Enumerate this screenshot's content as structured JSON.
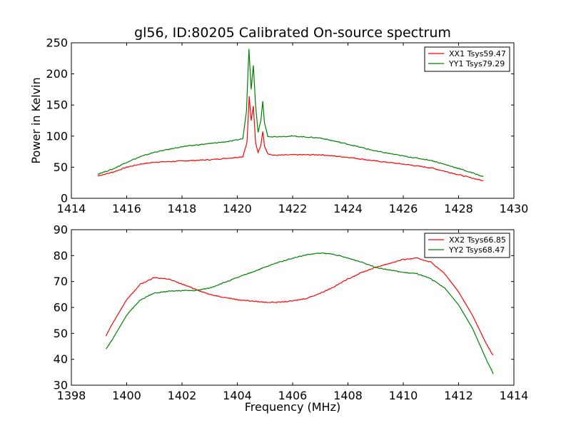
{
  "figure": {
    "title": "gl56, ID:80205 Calibrated On-source spectrum",
    "xlabel": "Frequency (MHz)"
  },
  "chart_data": [
    {
      "type": "line",
      "title": "gl56, ID:80205 Calibrated On-source spectrum",
      "xlabel": "",
      "ylabel": "Power in Kelvin",
      "xlim": [
        1414,
        1430
      ],
      "ylim": [
        0,
        250
      ],
      "xticks": [
        1414,
        1416,
        1418,
        1420,
        1422,
        1424,
        1426,
        1428,
        1430
      ],
      "yticks": [
        0,
        50,
        100,
        150,
        200,
        250
      ],
      "grid": false,
      "legend_position": "top-right",
      "series": [
        {
          "name": "XX1 Tsys59.47",
          "color": "#ff0000",
          "points": [
            [
              1414.95,
              36
            ],
            [
              1415.5,
              42
            ],
            [
              1416.0,
              50
            ],
            [
              1416.5,
              55
            ],
            [
              1417.0,
              58
            ],
            [
              1418.0,
              60
            ],
            [
              1419.0,
              62
            ],
            [
              1419.8,
              65
            ],
            [
              1420.2,
              67
            ],
            [
              1420.35,
              90
            ],
            [
              1420.43,
              164
            ],
            [
              1420.5,
              125
            ],
            [
              1420.58,
              148
            ],
            [
              1420.66,
              90
            ],
            [
              1420.75,
              73
            ],
            [
              1420.85,
              85
            ],
            [
              1420.92,
              108
            ],
            [
              1420.98,
              85
            ],
            [
              1421.1,
              72
            ],
            [
              1421.3,
              69
            ],
            [
              1422.0,
              70
            ],
            [
              1423.0,
              70
            ],
            [
              1424.0,
              66
            ],
            [
              1425.0,
              60
            ],
            [
              1426.0,
              55
            ],
            [
              1427.0,
              49
            ],
            [
              1428.0,
              38
            ],
            [
              1428.9,
              28
            ]
          ]
        },
        {
          "name": "YY1 Tsys79.29",
          "color": "#008000",
          "points": [
            [
              1414.95,
              39
            ],
            [
              1415.5,
              47
            ],
            [
              1416.0,
              58
            ],
            [
              1416.5,
              67
            ],
            [
              1417.0,
              74
            ],
            [
              1418.0,
              83
            ],
            [
              1419.0,
              88
            ],
            [
              1419.8,
              92
            ],
            [
              1420.2,
              96
            ],
            [
              1420.33,
              140
            ],
            [
              1420.42,
              240
            ],
            [
              1420.5,
              175
            ],
            [
              1420.58,
              214
            ],
            [
              1420.66,
              150
            ],
            [
              1420.75,
              106
            ],
            [
              1420.85,
              125
            ],
            [
              1420.92,
              156
            ],
            [
              1420.98,
              122
            ],
            [
              1421.1,
              100
            ],
            [
              1421.3,
              99
            ],
            [
              1422.0,
              100
            ],
            [
              1423.0,
              97
            ],
            [
              1424.0,
              87
            ],
            [
              1425.0,
              76
            ],
            [
              1426.0,
              68
            ],
            [
              1427.0,
              61
            ],
            [
              1428.0,
              48
            ],
            [
              1428.9,
              35
            ]
          ]
        }
      ]
    },
    {
      "type": "line",
      "title": "",
      "xlabel": "Frequency (MHz)",
      "ylabel": "",
      "xlim": [
        1398,
        1414
      ],
      "ylim": [
        30,
        90
      ],
      "xticks": [
        1398,
        1400,
        1402,
        1404,
        1406,
        1408,
        1410,
        1412,
        1414
      ],
      "yticks": [
        30,
        40,
        50,
        60,
        70,
        80,
        90
      ],
      "grid": false,
      "legend_position": "top-right",
      "series": [
        {
          "name": "XX2 Tsys66.85",
          "color": "#ff0000",
          "points": [
            [
              1399.25,
              49
            ],
            [
              1399.5,
              54
            ],
            [
              1400.0,
              63
            ],
            [
              1400.5,
              69
            ],
            [
              1401.0,
              71.5
            ],
            [
              1401.5,
              71
            ],
            [
              1402.0,
              69
            ],
            [
              1402.5,
              67
            ],
            [
              1403.0,
              65
            ],
            [
              1403.5,
              64
            ],
            [
              1404.0,
              63
            ],
            [
              1404.5,
              62.5
            ],
            [
              1405.0,
              62
            ],
            [
              1405.5,
              62
            ],
            [
              1406.0,
              62.5
            ],
            [
              1406.5,
              63.5
            ],
            [
              1407.0,
              65.5
            ],
            [
              1407.5,
              68
            ],
            [
              1408.0,
              71
            ],
            [
              1408.5,
              73.5
            ],
            [
              1409.0,
              75.5
            ],
            [
              1409.5,
              77
            ],
            [
              1410.0,
              78.5
            ],
            [
              1410.5,
              79
            ],
            [
              1411.0,
              77.5
            ],
            [
              1411.5,
              73
            ],
            [
              1412.0,
              66
            ],
            [
              1412.5,
              57
            ],
            [
              1413.0,
              46
            ],
            [
              1413.25,
              41.5
            ]
          ]
        },
        {
          "name": "YY2 Tsys68.47",
          "color": "#008000",
          "points": [
            [
              1399.25,
              44
            ],
            [
              1399.5,
              48
            ],
            [
              1400.0,
              57
            ],
            [
              1400.5,
              63
            ],
            [
              1401.0,
              65.5
            ],
            [
              1401.5,
              66.2
            ],
            [
              1402.0,
              66.5
            ],
            [
              1402.5,
              66.5
            ],
            [
              1403.0,
              67.5
            ],
            [
              1403.5,
              69.5
            ],
            [
              1404.0,
              71.5
            ],
            [
              1404.5,
              73.5
            ],
            [
              1405.0,
              75.5
            ],
            [
              1405.5,
              77.5
            ],
            [
              1406.0,
              79
            ],
            [
              1406.5,
              80.3
            ],
            [
              1407.0,
              81
            ],
            [
              1407.5,
              80.5
            ],
            [
              1408.0,
              79
            ],
            [
              1408.5,
              77.5
            ],
            [
              1409.0,
              75.5
            ],
            [
              1409.5,
              74.5
            ],
            [
              1410.0,
              73.5
            ],
            [
              1410.5,
              73
            ],
            [
              1411.0,
              71
            ],
            [
              1411.5,
              67.5
            ],
            [
              1412.0,
              61
            ],
            [
              1412.5,
              52
            ],
            [
              1413.0,
              40
            ],
            [
              1413.25,
              34.5
            ]
          ]
        }
      ]
    }
  ]
}
